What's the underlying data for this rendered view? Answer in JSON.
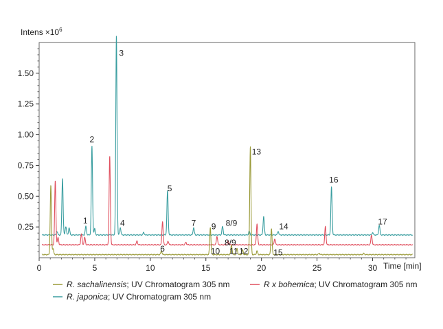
{
  "chart_data": {
    "type": "line",
    "ylabel_main": "Intens",
    "ylabel_exp": "×10",
    "ylabel_sup": "6",
    "xlabel": "Time [min]",
    "xlim": [
      0,
      33.8
    ],
    "ylim": [
      0,
      1.75
    ],
    "xticks": [
      0,
      5,
      10,
      15,
      20,
      25,
      30
    ],
    "yticks": [
      "0.25",
      "0.50",
      "0.75",
      "1.00",
      "1.25",
      "1.50"
    ],
    "yticks_values": [
      0.25,
      0.5,
      0.75,
      1.0,
      1.25,
      1.5
    ],
    "grid": false,
    "series": [
      {
        "name": "R. japonica",
        "legend_italic": "R. japonica",
        "legend_rest": "; UV Chromatogram 305 nm",
        "color": "#3a9ea0",
        "baseline": 0.185,
        "x_end": 33.6,
        "peaks": [
          [
            1.6,
            0.03
          ],
          [
            2.1,
            0.46
          ],
          [
            2.4,
            0.07
          ],
          [
            2.7,
            0.06
          ],
          [
            4.2,
            0.07
          ],
          [
            4.75,
            0.72
          ],
          [
            5.0,
            0.05
          ],
          [
            6.95,
            1.62
          ],
          [
            7.3,
            0.06
          ],
          [
            9.4,
            0.02
          ],
          [
            11.55,
            0.36
          ],
          [
            13.9,
            0.06
          ],
          [
            16.5,
            0.07
          ],
          [
            18.9,
            0.03
          ],
          [
            20.2,
            0.15
          ],
          [
            21.5,
            0.03
          ],
          [
            26.3,
            0.39
          ],
          [
            30.0,
            0.02
          ],
          [
            30.6,
            0.08
          ]
        ]
      },
      {
        "name": "R x bohemica",
        "legend_italic": "R x bohemica",
        "legend_rest": "; UV Chromatogram 305 nm",
        "color": "#e0505f",
        "baseline": 0.105,
        "x_end": 33.6,
        "peaks": [
          [
            1.45,
            0.52
          ],
          [
            1.7,
            0.06
          ],
          [
            3.8,
            0.09
          ],
          [
            4.1,
            0.06
          ],
          [
            6.35,
            0.72
          ],
          [
            8.8,
            0.03
          ],
          [
            11.1,
            0.19
          ],
          [
            11.6,
            0.03
          ],
          [
            13.2,
            0.02
          ],
          [
            16.0,
            0.07
          ],
          [
            17.0,
            0.03
          ],
          [
            19.6,
            0.17
          ],
          [
            21.2,
            0.05
          ],
          [
            25.75,
            0.15
          ],
          [
            29.9,
            0.08
          ]
        ]
      },
      {
        "name": "R. sachalinensis",
        "legend_italic": "R. sachalinensis",
        "legend_rest": "; UV Chromatogram 305 nm",
        "color": "#9a9a38",
        "baseline": 0.025,
        "x_end": 33.6,
        "peaks": [
          [
            1.05,
            0.56
          ],
          [
            1.25,
            0.05
          ],
          [
            11.0,
            0.03
          ],
          [
            15.4,
            0.22
          ],
          [
            17.3,
            0.08
          ],
          [
            17.8,
            0.05
          ],
          [
            18.3,
            0.04
          ],
          [
            19.0,
            0.88
          ],
          [
            19.6,
            0.03
          ],
          [
            20.9,
            0.21
          ],
          [
            25.2,
            0.01
          ],
          [
            29.2,
            0.01
          ]
        ]
      }
    ],
    "peak_labels": [
      {
        "text": "1",
        "x": 4.15,
        "y": 0.28
      },
      {
        "text": "2",
        "x": 4.75,
        "y": 0.94
      },
      {
        "text": "3",
        "x": 7.4,
        "y": 1.64
      },
      {
        "text": "4",
        "x": 7.5,
        "y": 0.26
      },
      {
        "text": "5",
        "x": 11.75,
        "y": 0.54
      },
      {
        "text": "6",
        "x": 11.1,
        "y": 0.05
      },
      {
        "text": "7",
        "x": 13.9,
        "y": 0.26
      },
      {
        "text": "8/9",
        "x": 17.3,
        "y": 0.26
      },
      {
        "text": "9",
        "x": 15.7,
        "y": 0.23
      },
      {
        "text": "10",
        "x": 15.85,
        "y": 0.03
      },
      {
        "text": "8/9",
        "x": 17.2,
        "y": 0.1
      },
      {
        "text": "11",
        "x": 17.5,
        "y": 0.03
      },
      {
        "text": "12",
        "x": 18.4,
        "y": 0.03
      },
      {
        "text": "13",
        "x": 19.55,
        "y": 0.84
      },
      {
        "text": "14",
        "x": 22.0,
        "y": 0.23
      },
      {
        "text": "15",
        "x": 21.5,
        "y": 0.02
      },
      {
        "text": "16",
        "x": 26.5,
        "y": 0.61
      },
      {
        "text": "17",
        "x": 30.9,
        "y": 0.27
      }
    ],
    "legend_order": [
      2,
      1,
      0
    ]
  }
}
